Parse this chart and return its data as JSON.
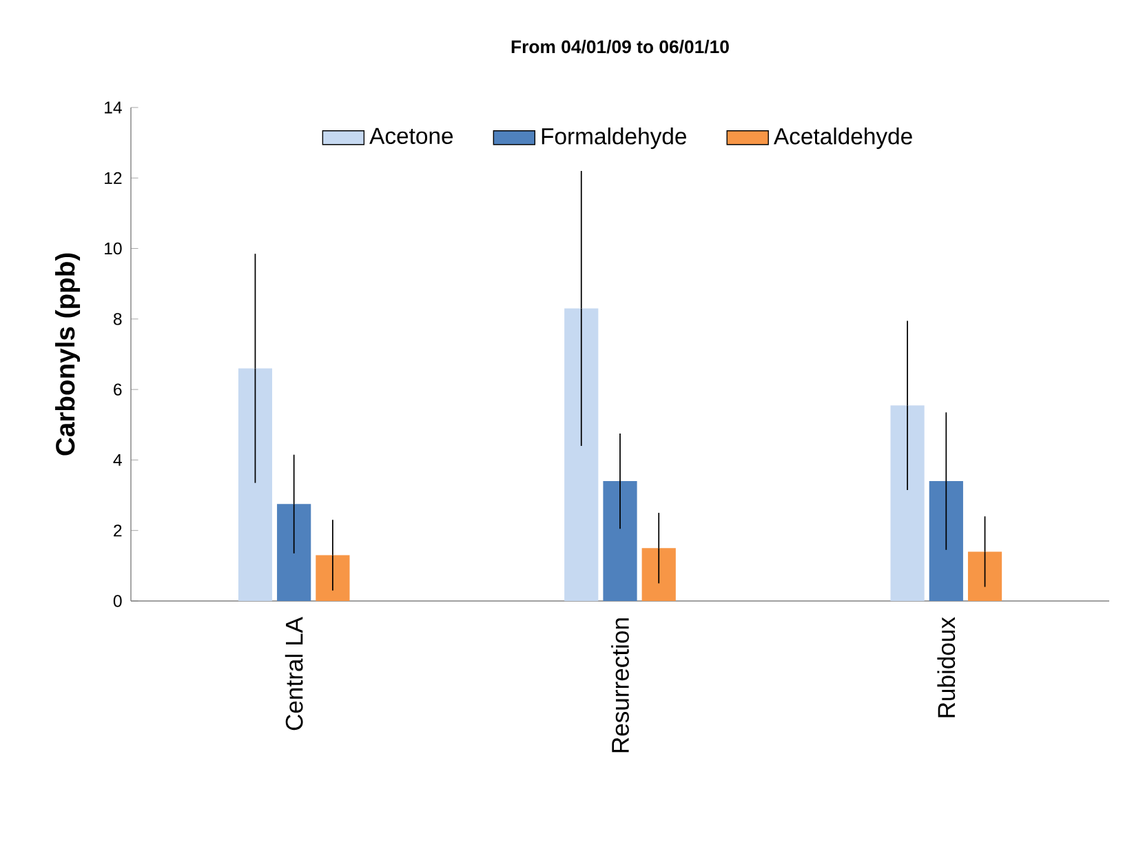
{
  "chart_data": {
    "type": "bar",
    "title": "From 04/01/09 to 06/01/10",
    "ylabel": "Carbonyls (ppb)",
    "categories": [
      "Central LA",
      "Resurrection",
      "Rubidoux"
    ],
    "series": [
      {
        "name": "Acetone",
        "color": "#c6d9f1",
        "values": [
          6.6,
          8.3,
          5.55
        ],
        "errors": [
          3.25,
          3.9,
          2.4
        ]
      },
      {
        "name": "Formaldehyde",
        "color": "#4f81bd",
        "values": [
          2.75,
          3.4,
          3.4
        ],
        "errors": [
          1.4,
          1.35,
          1.95
        ]
      },
      {
        "name": "Acetaldehyde",
        "color": "#f79646",
        "values": [
          1.3,
          1.5,
          1.4
        ],
        "errors": [
          1.0,
          1.0,
          1.0
        ]
      }
    ],
    "ylim": [
      0,
      14
    ],
    "yticks": [
      0,
      2,
      4,
      6,
      8,
      10,
      12,
      14
    ],
    "legend": "top"
  }
}
